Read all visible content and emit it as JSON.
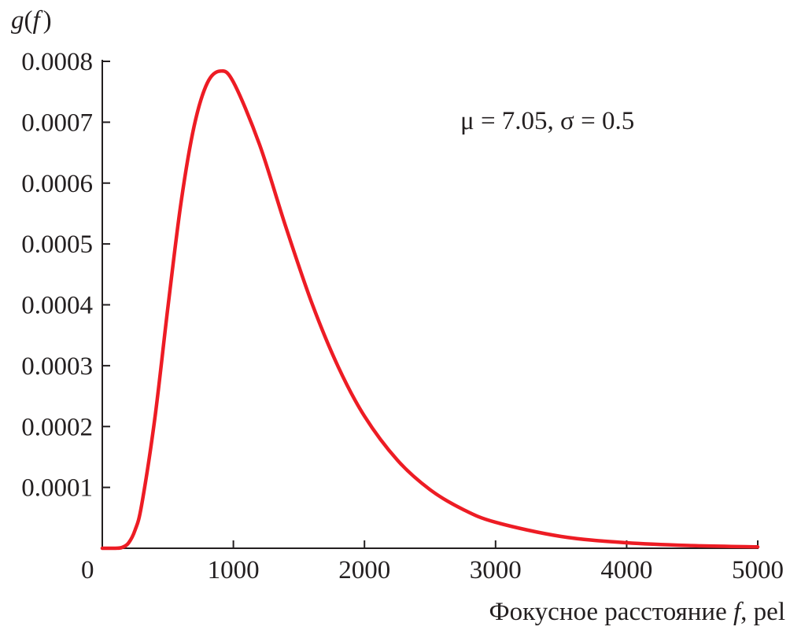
{
  "chart_data": {
    "type": "line",
    "ylabel": "g(f)",
    "xlabel": "Фокусное расстояние f, pel",
    "xlabel_parts": {
      "text": "Фокусное расстояние ",
      "var": "f",
      "unit": ", pel"
    },
    "ylabel_parts": {
      "var": "g",
      "open": "(",
      "arg": "f",
      "close": ")"
    },
    "annotation": "μ = 7.05, σ = 0.5",
    "xlim": [
      0,
      5000
    ],
    "ylim": [
      0,
      0.0008
    ],
    "x_ticks": [
      "0",
      "1000",
      "2000",
      "3000",
      "4000",
      "5000"
    ],
    "y_ticks": [
      "0.0001",
      "0.0002",
      "0.0003",
      "0.0004",
      "0.0005",
      "0.0006",
      "0.0007",
      "0.0008"
    ],
    "grid": false,
    "color": "#ed1c24",
    "series": [
      {
        "x": [
          0,
          100,
          150,
          200,
          250,
          300,
          400,
          500,
          600,
          700,
          800,
          900,
          1000,
          1200,
          1400,
          1600,
          1800,
          2000,
          2250,
          2500,
          2750,
          3000,
          3500,
          4000,
          4500,
          5000
        ],
        "y": [
          0,
          5e-08,
          1.3e-06,
          8.6e-06,
          2.98e-05,
          7.09e-05,
          0.000212,
          0.000395,
          0.000567,
          0.000693,
          0.000764,
          0.000784,
          0.000766,
          0.000663,
          0.000528,
          0.000402,
          0.000298,
          0.000217,
          0.000145,
          9.63e-05,
          6.4e-05,
          4.27e-05,
          1.94e-05,
          9e-06,
          4.3e-06,
          2.2e-06
        ]
      }
    ]
  }
}
